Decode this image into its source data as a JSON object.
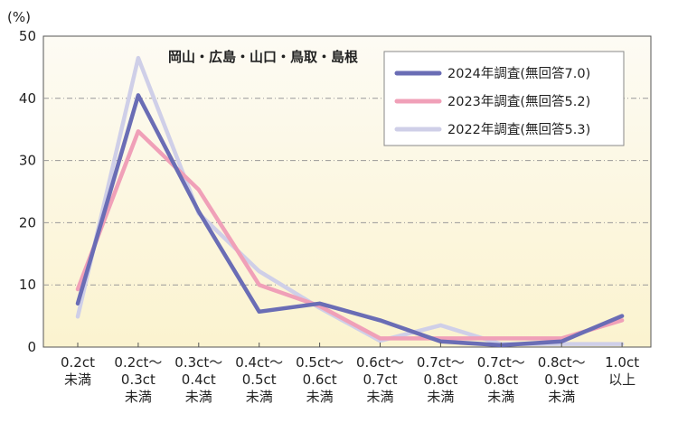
{
  "chart_data": {
    "type": "line",
    "title": "",
    "annotation": "岡山・広島・山口・鳥取・島根",
    "ylabel": "(%)",
    "xlabel": "",
    "ylim": [
      0,
      50
    ],
    "yticks": [
      0,
      10,
      20,
      30,
      40,
      50
    ],
    "grid": true,
    "legend_position": "top-right",
    "categories": [
      [
        "0.2ct",
        "未満"
      ],
      [
        "0.2ct〜",
        "0.3ct",
        "未満"
      ],
      [
        "0.3ct〜",
        "0.4ct",
        "未満"
      ],
      [
        "0.4ct〜",
        "0.5ct",
        "未満"
      ],
      [
        "0.5ct〜",
        "0.6ct",
        "未満"
      ],
      [
        "0.6ct〜",
        "0.7ct",
        "未満"
      ],
      [
        "0.7ct〜",
        "0.8ct",
        "未満"
      ],
      [
        "0.7ct〜",
        "0.8ct",
        "未満"
      ],
      [
        "0.8ct〜",
        "0.9ct",
        "未満"
      ],
      [
        "1.0ct",
        "以上"
      ]
    ],
    "series": [
      {
        "name": "2022年調査(無回答5.3)",
        "color": "#cfcfe8",
        "values": [
          4.9,
          46.5,
          21.5,
          12.2,
          6.3,
          1.0,
          3.5,
          0.5,
          0.5,
          0.5
        ]
      },
      {
        "name": "2023年調査(無回答5.2)",
        "color": "#f0a0b8",
        "values": [
          9.3,
          34.7,
          25.3,
          10.0,
          6.6,
          1.4,
          1.4,
          1.4,
          1.4,
          4.3
        ]
      },
      {
        "name": "2024年調査(無回答7.0)",
        "color": "#6a6db5",
        "values": [
          7.0,
          40.5,
          21.8,
          5.7,
          7.0,
          4.3,
          0.9,
          0.3,
          0.9,
          5.0
        ]
      }
    ],
    "legend_order": [
      2,
      1,
      0
    ]
  }
}
